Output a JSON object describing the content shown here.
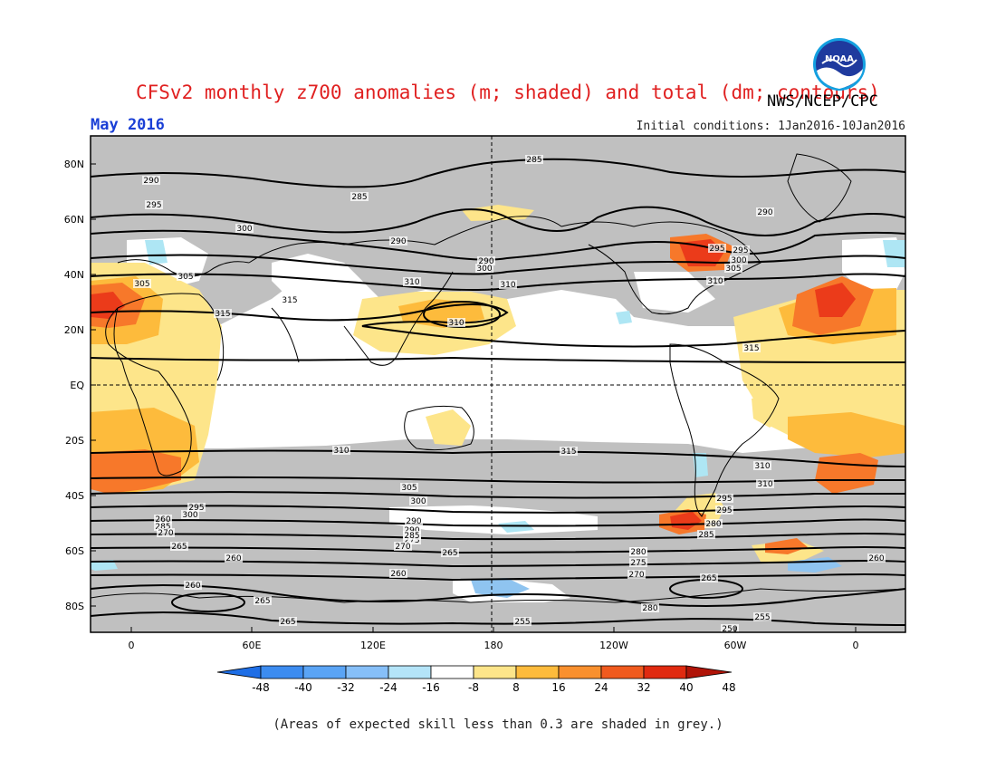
{
  "header": {
    "title": "CFSv2 monthly z700 anomalies (m; shaded) and total (dm; contours)",
    "agency": "NWS/NCEP/CPC",
    "month": "May 2016",
    "initial_conditions": "Initial conditions: 1Jan2016-10Jan2016"
  },
  "logo": {
    "icon": "noaa-logo-icon",
    "text": "NOAA"
  },
  "map": {
    "lat_labels": [
      "80N",
      "60N",
      "40N",
      "20N",
      "EQ",
      "20S",
      "40S",
      "60S",
      "80S"
    ],
    "lon_labels": [
      "0",
      "60E",
      "120E",
      "180",
      "120W",
      "60W",
      "0"
    ],
    "contour_labels": [
      "290",
      "285",
      "290",
      "295",
      "300",
      "290",
      "295",
      "300",
      "305",
      "310",
      "305",
      "310",
      "315",
      "310",
      "315",
      "285",
      "290",
      "295",
      "300",
      "305",
      "310",
      "315",
      "310",
      "315",
      "310",
      "310",
      "305",
      "300",
      "295",
      "285",
      "290",
      "295",
      "280",
      "260",
      "285",
      "270",
      "265",
      "290",
      "275",
      "280",
      "270",
      "285",
      "295",
      "300",
      "265",
      "255",
      "260",
      "255",
      "265",
      "260",
      "265",
      "260",
      "280",
      "275",
      "270",
      "265",
      "260",
      "280",
      "250"
    ],
    "colors": {
      "grey_skill": "#c0c0c0",
      "ocean_land_white": "#ffffff",
      "positive_light": "#fde58a",
      "positive_mid": "#fdbb3c",
      "positive_strong": "#f7782a",
      "positive_very": "#eb3b1a",
      "negative_light": "#aee6f4",
      "negative_mid": "#8fc4f0"
    }
  },
  "colorbar": {
    "ticks": [
      "-48",
      "-40",
      "-32",
      "-24",
      "-16",
      "-8",
      "8",
      "16",
      "24",
      "32",
      "40",
      "48"
    ],
    "colors": [
      "#1e6ee6",
      "#3c8cf0",
      "#5aa4f5",
      "#86bff8",
      "#b4e4f8",
      "#ffffff",
      "#fde58a",
      "#fdbb3c",
      "#f9902e",
      "#f05a1e",
      "#e02a10",
      "#b01408"
    ]
  },
  "footnote": "(Areas of expected skill less than 0.3 are shaded in grey.)"
}
